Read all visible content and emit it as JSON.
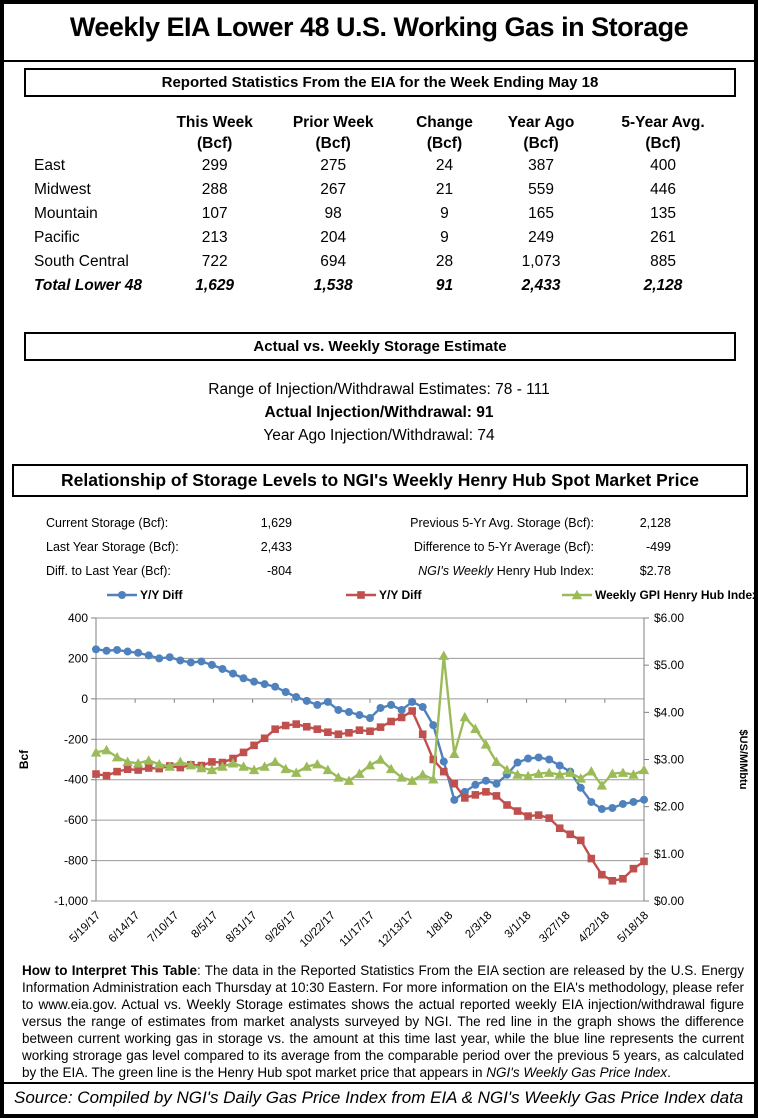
{
  "title": "Weekly EIA Lower 48 U.S. Working Gas in Storage",
  "reported": {
    "header": "Reported Statistics From the EIA for the Week Ending May 18",
    "columns": [
      "This Week",
      "Prior Week",
      "Change",
      "Year Ago",
      "5-Year Avg."
    ],
    "unit_row": [
      "(Bcf)",
      "(Bcf)",
      "(Bcf)",
      "(Bcf)",
      "(Bcf)"
    ],
    "rows": [
      {
        "region": "East",
        "values": [
          "299",
          "275",
          "24",
          "387",
          "400"
        ]
      },
      {
        "region": "Midwest",
        "values": [
          "288",
          "267",
          "21",
          "559",
          "446"
        ]
      },
      {
        "region": "Mountain",
        "values": [
          "107",
          "98",
          "9",
          "165",
          "135"
        ]
      },
      {
        "region": "Pacific",
        "values": [
          "213",
          "204",
          "9",
          "249",
          "261"
        ]
      },
      {
        "region": "South Central",
        "values": [
          "722",
          "694",
          "28",
          "1,073",
          "885"
        ]
      },
      {
        "region": "Total Lower 48",
        "values": [
          "1,629",
          "1,538",
          "91",
          "2,433",
          "2,128"
        ]
      }
    ]
  },
  "estimate": {
    "header": "Actual vs. Weekly Storage Estimate",
    "lines": [
      "Range of Injection/Withdrawal Estimates: 78 - 111",
      "Actual Injection/Withdrawal: 91",
      "Year Ago Injection/Withdrawal: 74"
    ]
  },
  "relationship": {
    "header": "Relationship of Storage Levels to NGI's Weekly Henry Hub Spot Market Price",
    "stats_left": [
      {
        "label": "Current Storage (Bcf):",
        "value": "1,629"
      },
      {
        "label": "Last Year Storage (Bcf):",
        "value": "2,433"
      },
      {
        "label": "Diff. to Last Year (Bcf):",
        "value": "-804"
      }
    ],
    "stats_right": [
      {
        "label_italic": "",
        "label": "Previous 5-Yr Avg. Storage (Bcf):",
        "value": "2,128"
      },
      {
        "label_italic": "",
        "label": "Difference to 5-Yr Average (Bcf):",
        "value": "-499"
      },
      {
        "label_italic": "NGI's Weekly",
        "label": " Henry Hub Index:",
        "value": "$2.78"
      }
    ]
  },
  "chart_data": {
    "type": "line",
    "title": "",
    "n_points": 53,
    "x_tick_labels": [
      "5/19/17",
      "6/14/17",
      "7/10/17",
      "8/5/17",
      "8/31/17",
      "9/26/17",
      "10/22/17",
      "11/17/17",
      "12/13/17",
      "1/8/18",
      "2/3/18",
      "3/1/18",
      "3/27/18",
      "4/22/18",
      "5/18/18"
    ],
    "left_axis": {
      "title": "Bcf",
      "min": -1000,
      "max": 400,
      "tick_values": [
        400,
        200,
        0,
        -200,
        -400,
        -600,
        -800,
        -1000
      ],
      "tick_labels": [
        "400",
        "200",
        "0",
        "-200",
        "-400",
        "-600",
        "-800",
        "-1,000"
      ]
    },
    "right_axis": {
      "title": "$US/MMbtu",
      "min": 0,
      "max": 6,
      "tick_values": [
        6,
        5,
        4,
        3,
        2,
        1,
        0
      ],
      "tick_labels": [
        "$6.00",
        "$5.00",
        "$4.00",
        "$3.00",
        "$2.00",
        "$1.00",
        "$0.00"
      ]
    },
    "grid": true,
    "legend_position": "top",
    "series": [
      {
        "name": "Y/Y Diff",
        "color": "#4F81BD",
        "marker": "circle",
        "axis": "left",
        "values": [
          245,
          238,
          242,
          234,
          228,
          215,
          200,
          206,
          190,
          180,
          185,
          168,
          148,
          125,
          102,
          85,
          73,
          60,
          34,
          9,
          -10,
          -30,
          -15,
          -55,
          -65,
          -80,
          -95,
          -45,
          -30,
          -55,
          -15,
          -40,
          -130,
          -310,
          -500,
          -460,
          -425,
          -405,
          -420,
          -375,
          -315,
          -295,
          -290,
          -300,
          -330,
          -360,
          -440,
          -510,
          -545,
          -540,
          -520,
          -510,
          -499
        ]
      },
      {
        "name": "Y/Y Diff",
        "color": "#C0504D",
        "marker": "square",
        "axis": "left",
        "values": [
          -372,
          -380,
          -360,
          -348,
          -352,
          -342,
          -345,
          -332,
          -340,
          -326,
          -330,
          -312,
          -315,
          -295,
          -265,
          -230,
          -195,
          -150,
          -132,
          -125,
          -138,
          -150,
          -165,
          -175,
          -168,
          -155,
          -160,
          -140,
          -112,
          -92,
          -60,
          -175,
          -300,
          -360,
          -420,
          -490,
          -475,
          -460,
          -480,
          -525,
          -555,
          -580,
          -575,
          -590,
          -640,
          -670,
          -700,
          -790,
          -870,
          -900,
          -890,
          -840,
          -804
        ]
      },
      {
        "name": "Weekly GPI Henry Hub Index",
        "color": "#9BBB59",
        "marker": "triangle",
        "axis": "right",
        "values": [
          3.15,
          3.2,
          3.05,
          2.95,
          2.92,
          2.98,
          2.9,
          2.85,
          2.95,
          2.88,
          2.82,
          2.78,
          2.85,
          2.92,
          2.85,
          2.78,
          2.85,
          2.95,
          2.8,
          2.72,
          2.85,
          2.9,
          2.78,
          2.62,
          2.55,
          2.7,
          2.88,
          3.0,
          2.8,
          2.62,
          2.55,
          2.68,
          2.58,
          5.2,
          3.12,
          3.9,
          3.65,
          3.32,
          2.95,
          2.78,
          2.68,
          2.65,
          2.7,
          2.72,
          2.68,
          2.72,
          2.6,
          2.75,
          2.45,
          2.7,
          2.72,
          2.68,
          2.78
        ]
      }
    ]
  },
  "how_to": {
    "lead": "How to Interpret This Table",
    "body": ": The data in the Reported Statistics From the EIA section are released by the U.S. Energy Information Administration each Thursday at 10:30 Eastern. For more information on the EIA's methodology, please refer to www.eia.gov.  Actual vs. Weekly Storage estimates shows the actual reported weekly EIA injection/withdrawal figure versus the range of estimates from market analysts surveyed by NGI. The red line in the graph shows the difference between current working gas in storage vs. the amount at this time last year, while the blue line represents the current working strorage gas level compared to its average from the comparable period over the previous 5 years, as calculated by the EIA. The green line is the Henry Hub spot market price that appears in ",
    "italic_tail": "NGI's Weekly Gas Price Index",
    "tail_end": "."
  },
  "source_line": "Source: Compiled by NGI's Daily Gas Price Index from EIA & NGI's Weekly Gas Price Index data"
}
